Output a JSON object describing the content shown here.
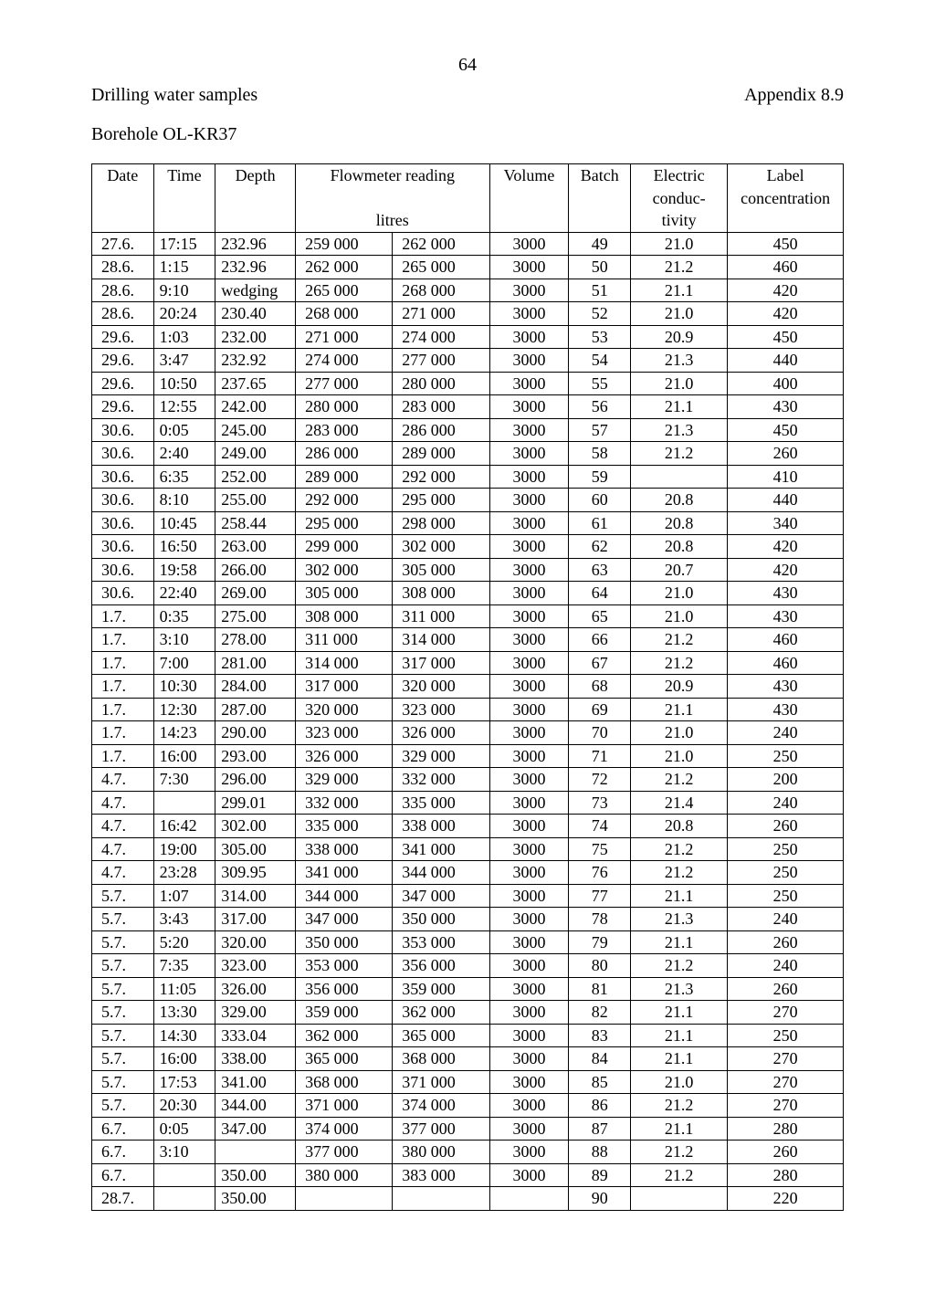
{
  "page_number": "64",
  "header_left": "Drilling water samples",
  "header_right": "Appendix 8.9",
  "subtitle": "Borehole OL-KR37",
  "table": {
    "header_row1": {
      "date": "Date",
      "time": "Time",
      "depth": "Depth",
      "flowmeter": "Flowmeter reading",
      "volume": "Volume",
      "batch": "Batch",
      "conduct1": "Electric",
      "label": "Label"
    },
    "header_row2": {
      "conduct2": "conduc-",
      "label2": "concentration"
    },
    "header_row3": {
      "flow_unit": "litres",
      "conduct3": "tivity"
    },
    "rows": [
      [
        "27.6.",
        "17:15",
        "232.96",
        "259 000",
        "262 000",
        "3000",
        "49",
        "21.0",
        "450"
      ],
      [
        "28.6.",
        "1:15",
        "232.96",
        "262 000",
        "265 000",
        "3000",
        "50",
        "21.2",
        "460"
      ],
      [
        "28.6.",
        "9:10",
        "wedging",
        "265 000",
        "268 000",
        "3000",
        "51",
        "21.1",
        "420"
      ],
      [
        "28.6.",
        "20:24",
        "230.40",
        "268 000",
        "271 000",
        "3000",
        "52",
        "21.0",
        "420"
      ],
      [
        "29.6.",
        "1:03",
        "232.00",
        "271 000",
        "274 000",
        "3000",
        "53",
        "20.9",
        "450"
      ],
      [
        "29.6.",
        "3:47",
        "232.92",
        "274 000",
        "277 000",
        "3000",
        "54",
        "21.3",
        "440"
      ],
      [
        "29.6.",
        "10:50",
        "237.65",
        "277 000",
        "280 000",
        "3000",
        "55",
        "21.0",
        "400"
      ],
      [
        "29.6.",
        "12:55",
        "242.00",
        "280 000",
        "283 000",
        "3000",
        "56",
        "21.1",
        "430"
      ],
      [
        "30.6.",
        "0:05",
        "245.00",
        "283 000",
        "286 000",
        "3000",
        "57",
        "21.3",
        "450"
      ],
      [
        "30.6.",
        "2:40",
        "249.00",
        "286 000",
        "289 000",
        "3000",
        "58",
        "21.2",
        "260"
      ],
      [
        "30.6.",
        "6:35",
        "252.00",
        "289 000",
        "292 000",
        "3000",
        "59",
        "",
        "410"
      ],
      [
        "30.6.",
        "8:10",
        "255.00",
        "292 000",
        "295 000",
        "3000",
        "60",
        "20.8",
        "440"
      ],
      [
        "30.6.",
        "10:45",
        "258.44",
        "295 000",
        "298 000",
        "3000",
        "61",
        "20.8",
        "340"
      ],
      [
        "30.6.",
        "16:50",
        "263.00",
        "299 000",
        "302 000",
        "3000",
        "62",
        "20.8",
        "420"
      ],
      [
        "30.6.",
        "19:58",
        "266.00",
        "302 000",
        "305 000",
        "3000",
        "63",
        "20.7",
        "420"
      ],
      [
        "30.6.",
        "22:40",
        "269.00",
        "305 000",
        "308 000",
        "3000",
        "64",
        "21.0",
        "430"
      ],
      [
        "1.7.",
        "0:35",
        "275.00",
        "308 000",
        "311 000",
        "3000",
        "65",
        "21.0",
        "430"
      ],
      [
        "1.7.",
        "3:10",
        "278.00",
        "311 000",
        "314 000",
        "3000",
        "66",
        "21.2",
        "460"
      ],
      [
        "1.7.",
        "7:00",
        "281.00",
        "314 000",
        "317 000",
        "3000",
        "67",
        "21.2",
        "460"
      ],
      [
        "1.7.",
        "10:30",
        "284.00",
        "317 000",
        "320 000",
        "3000",
        "68",
        "20.9",
        "430"
      ],
      [
        "1.7.",
        "12:30",
        "287.00",
        "320 000",
        "323 000",
        "3000",
        "69",
        "21.1",
        "430"
      ],
      [
        "1.7.",
        "14:23",
        "290.00",
        "323 000",
        "326 000",
        "3000",
        "70",
        "21.0",
        "240"
      ],
      [
        "1.7.",
        "16:00",
        "293.00",
        "326 000",
        "329 000",
        "3000",
        "71",
        "21.0",
        "250"
      ],
      [
        "4.7.",
        "7:30",
        "296.00",
        "329 000",
        "332 000",
        "3000",
        "72",
        "21.2",
        "200"
      ],
      [
        "4.7.",
        "",
        "299.01",
        "332 000",
        "335 000",
        "3000",
        "73",
        "21.4",
        "240"
      ],
      [
        "4.7.",
        "16:42",
        "302.00",
        "335 000",
        "338 000",
        "3000",
        "74",
        "20.8",
        "260"
      ],
      [
        "4.7.",
        "19:00",
        "305.00",
        "338 000",
        "341 000",
        "3000",
        "75",
        "21.2",
        "250"
      ],
      [
        "4.7.",
        "23:28",
        "309.95",
        "341 000",
        "344 000",
        "3000",
        "76",
        "21.2",
        "250"
      ],
      [
        "5.7.",
        "1:07",
        "314.00",
        "344 000",
        "347 000",
        "3000",
        "77",
        "21.1",
        "250"
      ],
      [
        "5.7.",
        "3:43",
        "317.00",
        "347 000",
        "350 000",
        "3000",
        "78",
        "21.3",
        "240"
      ],
      [
        "5.7.",
        "5:20",
        "320.00",
        "350 000",
        "353 000",
        "3000",
        "79",
        "21.1",
        "260"
      ],
      [
        "5.7.",
        "7:35",
        "323.00",
        "353 000",
        "356 000",
        "3000",
        "80",
        "21.2",
        "240"
      ],
      [
        "5.7.",
        "11:05",
        "326.00",
        "356 000",
        "359 000",
        "3000",
        "81",
        "21.3",
        "260"
      ],
      [
        "5.7.",
        "13:30",
        "329.00",
        "359 000",
        "362 000",
        "3000",
        "82",
        "21.1",
        "270"
      ],
      [
        "5.7.",
        "14:30",
        "333.04",
        "362 000",
        "365 000",
        "3000",
        "83",
        "21.1",
        "250"
      ],
      [
        "5.7.",
        "16:00",
        "338.00",
        "365 000",
        "368 000",
        "3000",
        "84",
        "21.1",
        "270"
      ],
      [
        "5.7.",
        "17:53",
        "341.00",
        "368 000",
        "371 000",
        "3000",
        "85",
        "21.0",
        "270"
      ],
      [
        "5.7.",
        "20:30",
        "344.00",
        "371 000",
        "374 000",
        "3000",
        "86",
        "21.2",
        "270"
      ],
      [
        "6.7.",
        "0:05",
        "347.00",
        "374 000",
        "377 000",
        "3000",
        "87",
        "21.1",
        "280"
      ],
      [
        "6.7.",
        "3:10",
        "",
        "377 000",
        "380 000",
        "3000",
        "88",
        "21.2",
        "260"
      ],
      [
        "6.7.",
        "",
        "350.00",
        "380 000",
        "383 000",
        "3000",
        "89",
        "21.2",
        "280"
      ],
      [
        "28.7.",
        "",
        "350.00",
        "",
        "",
        "",
        "90",
        "",
        "220"
      ]
    ]
  }
}
